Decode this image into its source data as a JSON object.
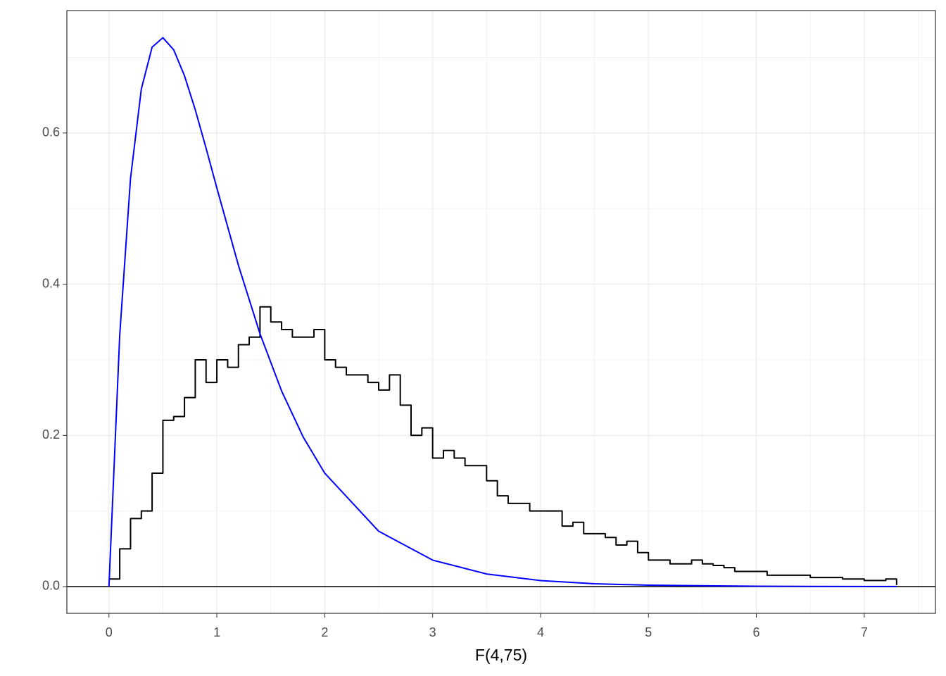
{
  "chart_data": {
    "type": "line",
    "x_label": "F(4,75)",
    "xlim": [
      -0.39,
      7.66
    ],
    "ylim": [
      -0.0354,
      0.762
    ],
    "xticks": [
      0,
      1,
      2,
      3,
      4,
      5,
      6,
      7
    ],
    "yticks": [
      {
        "value": 0,
        "label": "0.0"
      },
      {
        "value": 0.2,
        "label": "0.2"
      },
      {
        "value": 0.4,
        "label": "0.4"
      },
      {
        "value": 0.6,
        "label": "0.6"
      }
    ],
    "xminorticks": [
      -0.5,
      0.5,
      1.5,
      2.5,
      3.5,
      4.5,
      5.5,
      6.5,
      7.5
    ],
    "yminorticks": [
      0.1,
      0.3,
      0.5,
      0.7
    ],
    "grid": true,
    "hline": 0,
    "series": [
      {
        "style": "step",
        "color": "#000000",
        "x": [
          0,
          0.1,
          0.2,
          0.3,
          0.4,
          0.5,
          0.6,
          0.7,
          0.8,
          0.9,
          1.0,
          1.1,
          1.2,
          1.3,
          1.4,
          1.5,
          1.6,
          1.7,
          1.8,
          1.9,
          2.0,
          2.1,
          2.2,
          2.3,
          2.4,
          2.5,
          2.6,
          2.7,
          2.8,
          2.9,
          3.0,
          3.1,
          3.2,
          3.3,
          3.4,
          3.5,
          3.6,
          3.7,
          3.8,
          3.9,
          4.0,
          4.1,
          4.2,
          4.3,
          4.4,
          4.5,
          4.6,
          4.7,
          4.8,
          4.9,
          5.0,
          5.1,
          5.2,
          5.3,
          5.4,
          5.5,
          5.6,
          5.7,
          5.8,
          5.9,
          6.0,
          6.1,
          6.2,
          6.3,
          6.4,
          6.5,
          6.6,
          6.7,
          6.8,
          6.9,
          7.0,
          7.1,
          7.2,
          7.3
        ],
        "values": [
          0.01,
          0.05,
          0.09,
          0.1,
          0.15,
          0.22,
          0.225,
          0.25,
          0.3,
          0.27,
          0.3,
          0.29,
          0.32,
          0.33,
          0.37,
          0.35,
          0.34,
          0.33,
          0.33,
          0.34,
          0.3,
          0.29,
          0.28,
          0.28,
          0.27,
          0.26,
          0.28,
          0.24,
          0.2,
          0.21,
          0.17,
          0.18,
          0.17,
          0.16,
          0.16,
          0.14,
          0.12,
          0.11,
          0.11,
          0.1,
          0.1,
          0.1,
          0.08,
          0.085,
          0.07,
          0.07,
          0.065,
          0.055,
          0.06,
          0.045,
          0.035,
          0.035,
          0.03,
          0.03,
          0.035,
          0.03,
          0.028,
          0.025,
          0.02,
          0.02,
          0.02,
          0.015,
          0.015,
          0.015,
          0.015,
          0.012,
          0.012,
          0.012,
          0.01,
          0.01,
          0.008,
          0.008,
          0.01,
          0.002
        ]
      },
      {
        "style": "line",
        "color": "#0000ff",
        "x": [
          0,
          0.1,
          0.2,
          0.3,
          0.4,
          0.5,
          0.6,
          0.7,
          0.8,
          0.9,
          1.0,
          1.2,
          1.4,
          1.6,
          1.8,
          2.0,
          2.5,
          3.0,
          3.5,
          4.0,
          4.5,
          5.0,
          6.0,
          7.0,
          7.3
        ],
        "values": [
          0,
          0.3329,
          0.5401,
          0.6581,
          0.7136,
          0.7261,
          0.7101,
          0.6758,
          0.6308,
          0.58,
          0.5273,
          0.425,
          0.3344,
          0.2588,
          0.1979,
          0.15,
          0.0732,
          0.035,
          0.01666,
          0.00791,
          0.00377,
          0.00181,
          0.00043,
          0.0001,
          7e-05
        ]
      }
    ]
  }
}
